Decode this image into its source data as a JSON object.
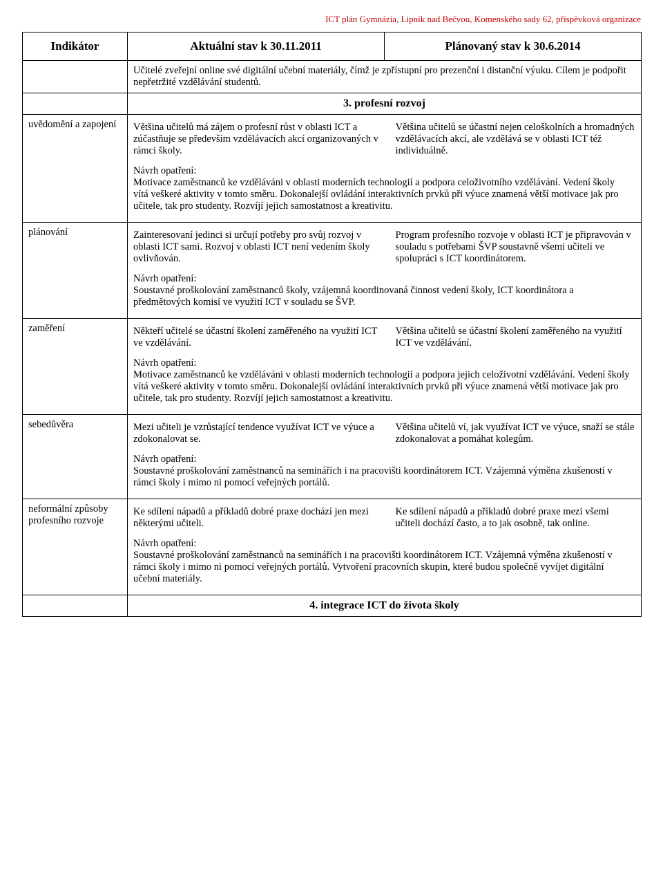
{
  "header": "ICT plán  Gymnázia, Lipník nad Bečvou, Komenského sady 62, příspěvková organizace",
  "cols": {
    "indicator": "Indikátor",
    "current": "Aktuální stav k 30.11.2011",
    "planned": "Plánovaný stav k 30.6.2014"
  },
  "intro": "Učitelé zveřejní online své digitální učební materiály, čímž je zpřístupní pro prezenční i distanční výuku. Cílem je podpořit nepřetržité vzdělávání studentů.",
  "section3": "3. profesní rozvoj",
  "rows": [
    {
      "label": "uvědomění a zapojení",
      "left": "Většina učitelů má zájem o profesní růst v oblasti ICT a zúčastňuje se především vzdělávacích akcí organizovaných v rámci školy.",
      "right": "Většina učitelů se účastní nejen celoškolních a hromadných vzdělávacích akcí, ale vzdělává se v oblasti ICT též individuálně.",
      "measure_label": "Návrh opatření:",
      "measure": "Motivace zaměstnanců ke vzděláváni v oblasti moderních technologií a podpora celoživotního vzdělávání. Vedení školy vítá veškeré aktivity v tomto směru. Dokonalejší ovládání interaktivních prvků při výuce znamená větší motivace jak pro učitele, tak pro studenty. Rozvíjí jejich samostatnost a kreativitu."
    },
    {
      "label": "plánování",
      "left": "Zainteresovaní jedinci si určují potřeby pro svůj rozvoj v oblasti ICT sami. Rozvoj v oblasti ICT není vedením školy ovlivňován.",
      "right": "Program profesního rozvoje v oblasti ICT je připravován v souladu s potřebami ŠVP soustavně všemi učiteli ve spolupráci s ICT koordinátorem.",
      "measure_label": "Návrh opatření:",
      "measure": "Soustavné proškolování zaměstnanců školy, vzájemná koordinovaná činnost vedení školy, ICT koordinátora a předmětových komisí ve využití ICT v souladu se ŠVP."
    },
    {
      "label": "zaměření",
      "left": "Někteří učitelé se účastní školení zaměřeného na využití ICT ve vzdělávání.",
      "right": "Většina učitelů se účastní školení zaměřeného na využití ICT ve vzdělávání.",
      "measure_label": "Návrh opatření:",
      "measure": "Motivace zaměstnanců ke vzděláváni v oblasti moderních technologií a podpora jejich celoživotní vzdělávání. Vedení školy vítá veškeré aktivity v tomto směru. Dokonalejší ovládání interaktivních prvků při výuce znamená větší motivace jak pro učitele, tak pro studenty. Rozvíjí jejich samostatnost a kreativitu."
    },
    {
      "label": "sebedůvěra",
      "left": "Mezi učiteli je vzrůstající tendence využívat ICT ve výuce a zdokonalovat se.",
      "right": "Většina učitelů ví, jak využívat ICT ve výuce, snaží se stále zdokonalovat a pomáhat kolegům.",
      "measure_label": "Návrh opatření:",
      "measure": "Soustavné proškolování zaměstnanců na seminářích i na pracovišti koordinátorem ICT. Vzájemná výměna zkušeností v rámci školy i mimo ni pomocí veřejných portálů."
    },
    {
      "label": "neformální způsoby profesního rozvoje",
      "left": "Ke sdílení nápadů a příkladů dobré praxe dochází jen mezi některými učiteli.",
      "right": "Ke sdílení nápadů a příkladů dobré praxe mezi všemi učiteli dochází často, a to jak osobně, tak online.",
      "measure_label": "Návrh opatření:",
      "measure": "Soustavné proškolování zaměstnanců na seminářích i na pracovišti koordinátorem ICT. Vzájemná výměna zkušeností v rámci školy i mimo ni pomocí veřejných portálů. Vytvoření pracovních skupin, které budou společně vyvíjet digitální učební materiály."
    }
  ],
  "section4": "4. integrace ICT do života školy"
}
